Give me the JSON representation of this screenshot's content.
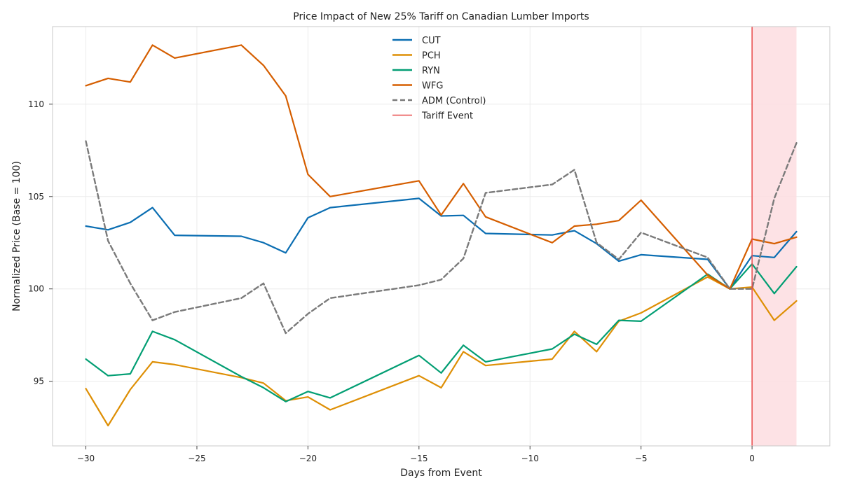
{
  "chart_data": {
    "type": "line",
    "title": "Price Impact of New 25% Tariff on Canadian Lumber Imports",
    "xlabel": "Days from Event",
    "ylabel": "Normalized Price (Base = 100)",
    "xlim": [
      -31.5,
      3.5
    ],
    "ylim": [
      91.5,
      114.2
    ],
    "xticks": [
      -30,
      -25,
      -20,
      -15,
      -10,
      -5,
      0
    ],
    "xtick_labels": [
      "−30",
      "−25",
      "−20",
      "−15",
      "−10",
      "−5",
      "0"
    ],
    "yticks": [
      95,
      100,
      105,
      110
    ],
    "ytick_labels": [
      "95",
      "100",
      "105",
      "110"
    ],
    "grid": true,
    "legend_position": "top-center",
    "event": {
      "name": "Tariff Event",
      "x": 0,
      "color": "#e84a4a",
      "shade_range": [
        0,
        2
      ],
      "shade_color": "#fddde0"
    },
    "series": [
      {
        "name": "CUT",
        "color": "#0b6eb2",
        "dashed": false,
        "x": [
          -30,
          -29,
          -28,
          -27,
          -26,
          -23,
          -22,
          -21,
          -20,
          -19,
          -15,
          -14,
          -13,
          -12,
          -9,
          -8,
          -7,
          -6,
          -5,
          -2,
          -1,
          0,
          1,
          2
        ],
        "y": [
          103.4,
          103.2,
          103.6,
          104.4,
          102.9,
          102.85,
          102.5,
          101.95,
          103.85,
          104.4,
          104.9,
          103.95,
          103.98,
          103.0,
          102.92,
          103.15,
          102.45,
          101.5,
          101.85,
          101.6,
          100.0,
          101.8,
          101.7,
          103.1
        ]
      },
      {
        "name": "PCH",
        "color": "#de8f05",
        "dashed": false,
        "x": [
          -30,
          -29,
          -28,
          -27,
          -26,
          -23,
          -22,
          -21,
          -20,
          -19,
          -15,
          -14,
          -13,
          -12,
          -9,
          -8,
          -7,
          -6,
          -5,
          -2,
          -1,
          0,
          1,
          2
        ],
        "y": [
          94.6,
          92.6,
          94.55,
          96.05,
          95.9,
          95.2,
          94.9,
          93.95,
          94.15,
          93.45,
          95.3,
          94.65,
          96.6,
          95.85,
          96.2,
          97.7,
          96.6,
          98.25,
          98.7,
          100.65,
          100.0,
          100.1,
          98.3,
          99.35
        ]
      },
      {
        "name": "RYN",
        "color": "#029e73",
        "dashed": false,
        "x": [
          -30,
          -29,
          -28,
          -27,
          -26,
          -23,
          -22,
          -21,
          -20,
          -19,
          -15,
          -14,
          -13,
          -12,
          -9,
          -8,
          -7,
          -6,
          -5,
          -2,
          -1,
          0,
          1,
          2
        ],
        "y": [
          96.2,
          95.3,
          95.4,
          97.7,
          97.25,
          95.25,
          94.65,
          93.9,
          94.45,
          94.1,
          96.4,
          95.45,
          96.95,
          96.05,
          96.75,
          97.55,
          97.0,
          98.3,
          98.25,
          100.8,
          100.0,
          101.35,
          99.75,
          101.2
        ]
      },
      {
        "name": "WFG",
        "color": "#d55e00",
        "dashed": false,
        "x": [
          -30,
          -29,
          -28,
          -27,
          -26,
          -23,
          -22,
          -21,
          -20,
          -19,
          -15,
          -14,
          -13,
          -12,
          -9,
          -8,
          -7,
          -6,
          -5,
          -2,
          -1,
          0,
          1,
          2
        ],
        "y": [
          111.0,
          111.4,
          111.2,
          113.2,
          112.5,
          113.2,
          112.1,
          110.45,
          106.2,
          105.0,
          105.85,
          104.0,
          105.7,
          103.9,
          102.5,
          103.4,
          103.5,
          103.7,
          104.8,
          100.75,
          100.0,
          102.7,
          102.45,
          102.8
        ]
      },
      {
        "name": "ADM (Control)",
        "color": "#7a7a7a",
        "dashed": true,
        "x": [
          -30,
          -29,
          -28,
          -27,
          -26,
          -23,
          -22,
          -21,
          -20,
          -19,
          -15,
          -14,
          -13,
          -12,
          -9,
          -8,
          -7,
          -6,
          -5,
          -2,
          -1,
          0,
          1,
          2
        ],
        "y": [
          108.0,
          102.6,
          100.3,
          98.3,
          98.75,
          99.5,
          100.3,
          97.6,
          98.65,
          99.5,
          100.2,
          100.5,
          101.65,
          105.2,
          105.65,
          106.45,
          102.5,
          101.6,
          103.05,
          101.7,
          100.0,
          100.0,
          104.9,
          107.9
        ]
      }
    ]
  }
}
